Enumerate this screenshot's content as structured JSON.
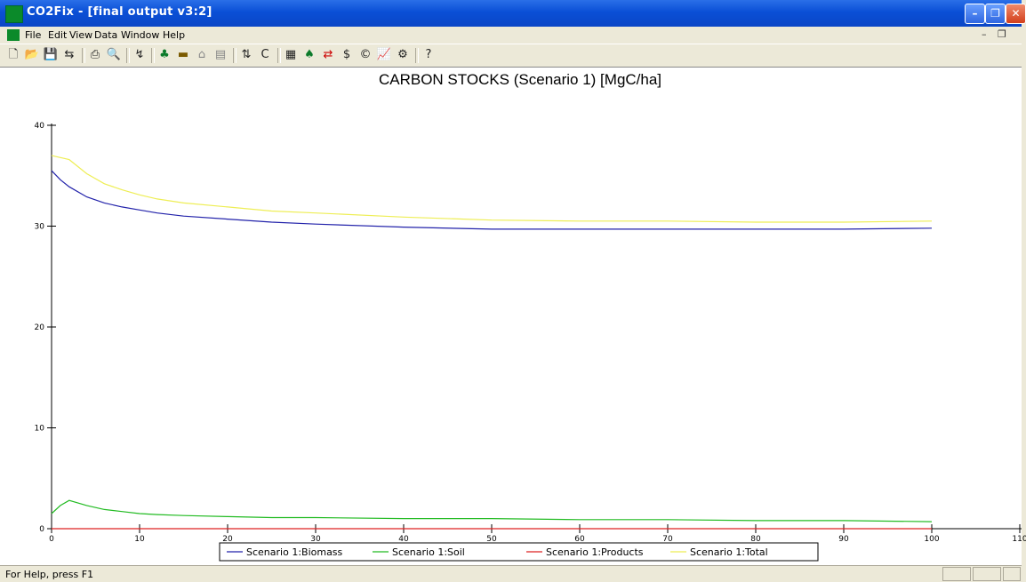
{
  "window": {
    "title": "CO2Fix - [final output v3:2]"
  },
  "menu": [
    "File",
    "Edit",
    "View",
    "Data",
    "Window",
    "Help"
  ],
  "toolbar_icons": [
    "new-icon",
    "open-icon",
    "save-icon",
    "import-icon",
    "print-icon",
    "print-preview-icon",
    "wizard-icon",
    "tree-icon",
    "soil-icon",
    "products-icon",
    "bioenergy-icon",
    "units-icon",
    "carbon-icon",
    "table-icon",
    "biomass-icon",
    "exchange-icon",
    "dollar-icon",
    "copy-icon",
    "chart-icon",
    "config-icon",
    "help-icon"
  ],
  "status": {
    "text": "For Help, press F1"
  },
  "chart_data": {
    "type": "line",
    "title": "CARBON STOCKS (Scenario 1) [MgC/ha]",
    "xlabel": "",
    "ylabel": "",
    "xlim": [
      0,
      110
    ],
    "ylim": [
      0,
      40
    ],
    "xticks": [
      0,
      10,
      20,
      30,
      40,
      50,
      60,
      70,
      80,
      90,
      100,
      110
    ],
    "yticks": [
      0,
      10,
      20,
      30,
      40
    ],
    "grid": false,
    "legend_position": "bottom-center",
    "series": [
      {
        "name": "Scenario 1:Biomass",
        "color": "#2222aa",
        "x": [
          0,
          1,
          2,
          4,
          6,
          8,
          10,
          12,
          15,
          20,
          25,
          30,
          40,
          50,
          60,
          70,
          80,
          90,
          100
        ],
        "y": [
          35.5,
          34.6,
          33.9,
          32.9,
          32.3,
          31.9,
          31.6,
          31.3,
          31.0,
          30.7,
          30.4,
          30.2,
          29.9,
          29.7,
          29.7,
          29.7,
          29.7,
          29.7,
          29.8
        ]
      },
      {
        "name": "Scenario 1:Soil",
        "color": "#22bb22",
        "x": [
          0,
          1,
          2,
          4,
          6,
          8,
          10,
          12,
          15,
          20,
          25,
          30,
          40,
          50,
          60,
          70,
          80,
          90,
          100
        ],
        "y": [
          1.5,
          2.3,
          2.8,
          2.3,
          1.9,
          1.7,
          1.5,
          1.4,
          1.3,
          1.2,
          1.1,
          1.1,
          1.0,
          1.0,
          0.9,
          0.9,
          0.8,
          0.8,
          0.7
        ]
      },
      {
        "name": "Scenario 1:Products",
        "color": "#dd2222",
        "x": [
          0,
          100
        ],
        "y": [
          0,
          0
        ]
      },
      {
        "name": "Scenario 1:Total",
        "color": "#eeee55",
        "x": [
          0,
          1,
          2,
          4,
          6,
          8,
          10,
          12,
          15,
          20,
          25,
          30,
          40,
          50,
          60,
          70,
          80,
          90,
          100
        ],
        "y": [
          37.0,
          36.8,
          36.6,
          35.2,
          34.2,
          33.6,
          33.1,
          32.7,
          32.3,
          31.9,
          31.5,
          31.3,
          30.9,
          30.6,
          30.5,
          30.5,
          30.4,
          30.4,
          30.5
        ]
      }
    ]
  }
}
